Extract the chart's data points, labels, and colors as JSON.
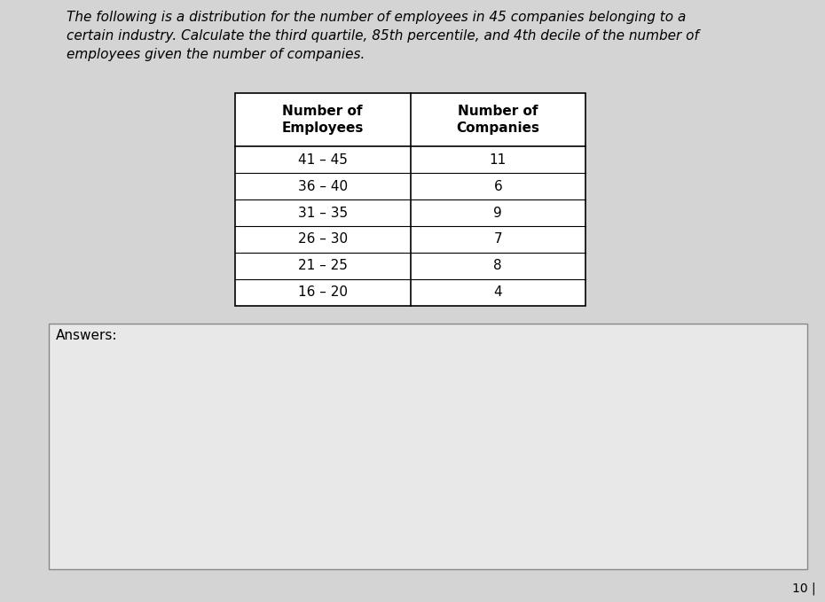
{
  "title_text": "The following is a distribution for the number of employees in 45 companies belonging to a\ncertain industry. Calculate the third quartile, 85th percentile, and 4th decile of the number of\nemployees given the number of companies.",
  "col_headers": [
    "Number of\nEmployees",
    "Number of\nCompanies"
  ],
  "rows": [
    [
      "41 – 45",
      "11"
    ],
    [
      "36 – 40",
      "6"
    ],
    [
      "31 – 35",
      "9"
    ],
    [
      "26 – 30",
      "7"
    ],
    [
      "21 – 25",
      "8"
    ],
    [
      "16 – 20",
      "4"
    ]
  ],
  "answers_label": "Answers:",
  "page_number": "10 |",
  "bg_color": "#d4d4d4",
  "table_bg": "#ffffff",
  "answers_box_bg": "#e8e8e8",
  "title_fontsize": 11.0,
  "table_fontsize": 11.0,
  "answers_fontsize": 11.0,
  "page_fontsize": 10.0
}
